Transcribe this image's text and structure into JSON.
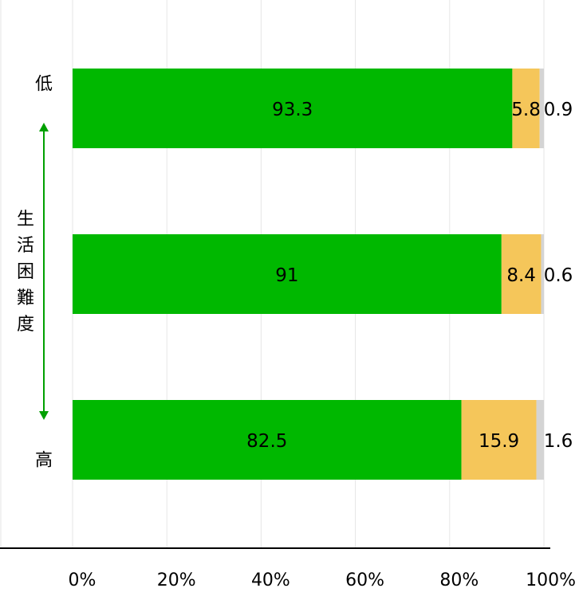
{
  "chart_data": {
    "type": "bar",
    "orientation": "horizontal",
    "stacked": true,
    "categories": [
      "低",
      "",
      "高"
    ],
    "series": [
      {
        "values": [
          93.3,
          91,
          82.5
        ],
        "color": "#00b800"
      },
      {
        "values": [
          5.8,
          8.4,
          15.9
        ],
        "color": "#f5c65a"
      },
      {
        "values": [
          0.9,
          0.6,
          1.6
        ],
        "color": "#d4d4d4"
      }
    ],
    "value_labels": [
      [
        "93.3",
        "5.8",
        "0.9"
      ],
      [
        "91",
        "8.4",
        "0.6"
      ],
      [
        "82.5",
        "15.9",
        "1.6"
      ]
    ],
    "xlim": [
      0,
      100
    ],
    "x_ticks": [
      "0%",
      "20%",
      "40%",
      "60%",
      "80%",
      "100%"
    ],
    "ylabel": "生活困難度",
    "ylabel_arrow_color": "#00a000",
    "grid": true,
    "grid_color": "#e6e6e6",
    "legend": "none"
  }
}
